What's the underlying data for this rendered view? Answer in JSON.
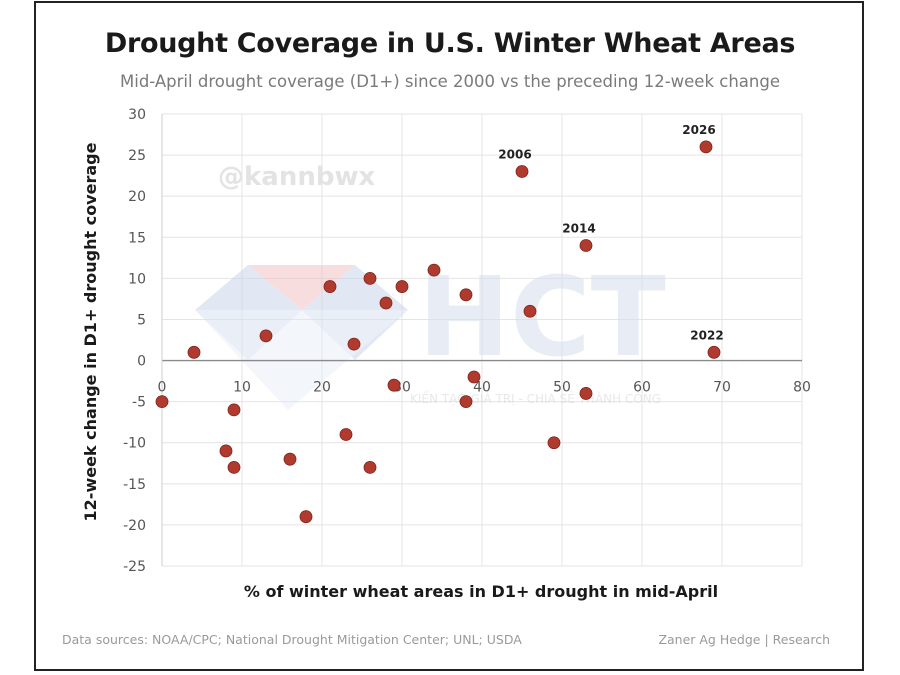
{
  "chart_data": {
    "type": "scatter",
    "title": "Drought Coverage in U.S. Winter Wheat Areas",
    "subtitle": "Mid-April drought coverage (D1+) since 2000 vs the preceding 12-week change",
    "xlabel": "% of winter wheat areas in D1+ drought in mid-April",
    "ylabel": "12-week change in D1+ drought coverage",
    "xlim": [
      0,
      80
    ],
    "ylim": [
      -25,
      30
    ],
    "xticks": [
      0,
      10,
      20,
      30,
      40,
      50,
      60,
      70,
      80
    ],
    "yticks": [
      30,
      25,
      20,
      15,
      10,
      5,
      0,
      -5,
      -10,
      -15,
      -20,
      -25
    ],
    "grid": true,
    "point_color": "#b03a2e",
    "points": [
      {
        "x": 0,
        "y": -5
      },
      {
        "x": 4,
        "y": 1
      },
      {
        "x": 8,
        "y": -11
      },
      {
        "x": 9,
        "y": -6
      },
      {
        "x": 9,
        "y": -13
      },
      {
        "x": 13,
        "y": 3
      },
      {
        "x": 16,
        "y": -12
      },
      {
        "x": 18,
        "y": -19
      },
      {
        "x": 21,
        "y": 9
      },
      {
        "x": 23,
        "y": -9
      },
      {
        "x": 24,
        "y": 2
      },
      {
        "x": 26,
        "y": 10
      },
      {
        "x": 26,
        "y": -13
      },
      {
        "x": 28,
        "y": 7
      },
      {
        "x": 29,
        "y": -3
      },
      {
        "x": 30,
        "y": 9
      },
      {
        "x": 34,
        "y": 11
      },
      {
        "x": 38,
        "y": 8
      },
      {
        "x": 38,
        "y": -5
      },
      {
        "x": 39,
        "y": -2
      },
      {
        "x": 45,
        "y": 23,
        "label": "2006"
      },
      {
        "x": 46,
        "y": 6
      },
      {
        "x": 49,
        "y": -10
      },
      {
        "x": 53,
        "y": 14,
        "label": "2014"
      },
      {
        "x": 53,
        "y": -4
      },
      {
        "x": 68,
        "y": 26,
        "label": "2026"
      },
      {
        "x": 69,
        "y": 1,
        "label": "2022"
      }
    ]
  },
  "watermark": {
    "handle": "@kannbwx",
    "brand": "HCT",
    "tagline": "KIẾN TẠO GIÁ TRỊ - CHIA SẺ THÀNH CÔNG"
  },
  "footer": {
    "sources": "Data sources: NOAA/CPC; National Drought Mitigation Center; UNL; USDA",
    "credit": "Zaner Ag Hedge | Research"
  }
}
